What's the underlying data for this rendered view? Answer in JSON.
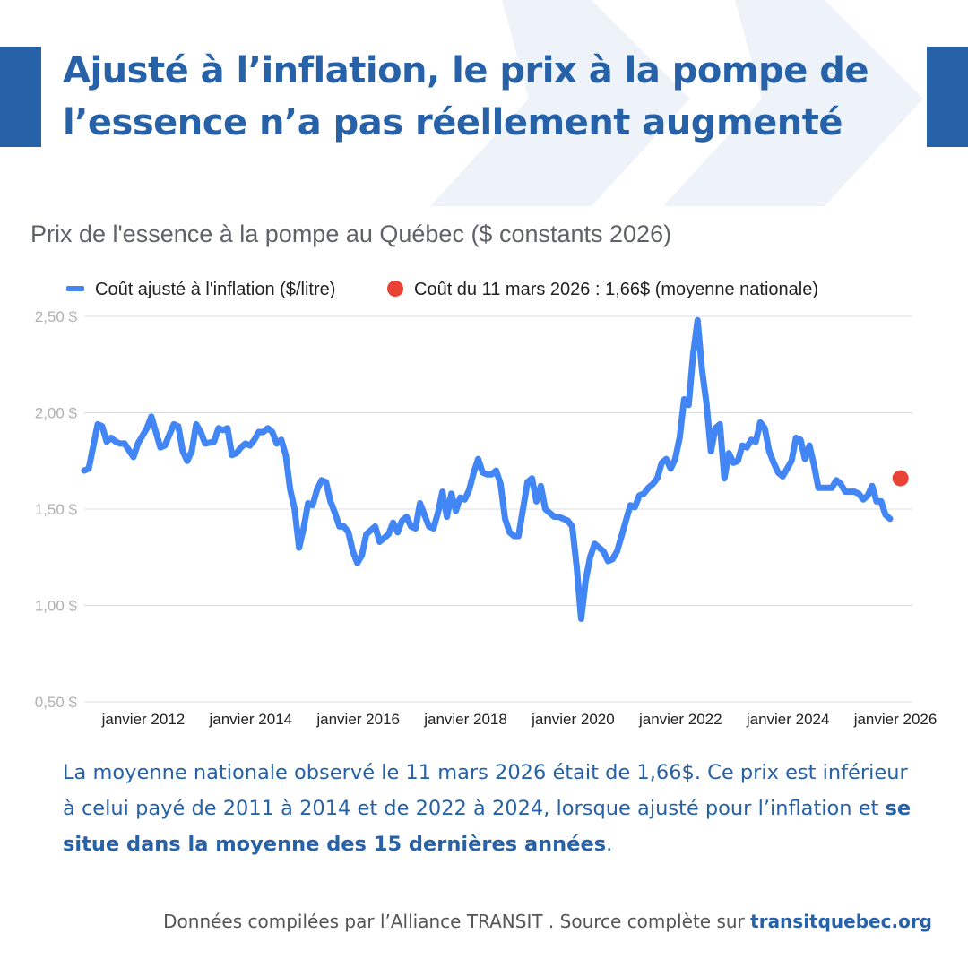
{
  "headline": {
    "line1": "Ajusté à l’inflation, le prix à la pompe de",
    "line2": "l’essence n’a pas réellement augmenté"
  },
  "body": {
    "part1": "La moyenne nationale observé le 11 mars 2026 était de 1,66$. Ce prix est inférieur à celui payé de 2011 à 2014 et de 2022 à 2024, lorsque ajusté pour l’inflation et ",
    "bold": "se situe dans la moyenne des 15 dernières années",
    "end": "."
  },
  "footer": {
    "text": "Données compilées par l’Alliance TRANSIT . Source complète sur ",
    "site": "transitquebec.org"
  },
  "colors": {
    "brand": "#2762a8",
    "series": "#4285f4",
    "point": "#ea4335",
    "chevron": "#eef3fa",
    "grid": "#dadce0"
  },
  "chart_data": {
    "type": "line",
    "title": "Prix de l'essence à la pompe au Québec ($ constants 2026)",
    "legend": [
      "Coût ajusté à l'inflation ($/litre)",
      "Coût du 11 mars 2026 : 1,66$ (moyenne nationale)"
    ],
    "legend_position": "top",
    "grid": true,
    "ylim": [
      0.5,
      2.5
    ],
    "y_ticks": [
      {
        "value": 0.5,
        "label": "0,50 $"
      },
      {
        "value": 1.0,
        "label": "1,00 $"
      },
      {
        "value": 1.5,
        "label": "1,50 $"
      },
      {
        "value": 2.0,
        "label": "2,00 $"
      },
      {
        "value": 2.5,
        "label": "2,50 $"
      }
    ],
    "xlim": [
      "2011-01",
      "2026-06"
    ],
    "x_ticks": [
      {
        "value": "2012-01",
        "label": "janvier 2012"
      },
      {
        "value": "2014-01",
        "label": "janvier 2014"
      },
      {
        "value": "2016-01",
        "label": "janvier 2016"
      },
      {
        "value": "2018-01",
        "label": "janvier 2018"
      },
      {
        "value": "2020-01",
        "label": "janvier 2020"
      },
      {
        "value": "2022-01",
        "label": "janvier 2022"
      },
      {
        "value": "2024-01",
        "label": "janvier 2024"
      },
      {
        "value": "2026-01",
        "label": "janvier 2026"
      }
    ],
    "series": [
      {
        "points": [
          [
            "2011-01",
            1.7
          ],
          [
            "2011-02",
            1.71
          ],
          [
            "2011-04",
            1.94
          ],
          [
            "2011-05",
            1.93
          ],
          [
            "2011-06",
            1.85
          ],
          [
            "2011-07",
            1.87
          ],
          [
            "2011-08",
            1.85
          ],
          [
            "2011-09",
            1.84
          ],
          [
            "2011-10",
            1.84
          ],
          [
            "2011-12",
            1.77
          ],
          [
            "2012-01",
            1.84
          ],
          [
            "2012-03",
            1.92
          ],
          [
            "2012-04",
            1.98
          ],
          [
            "2012-06",
            1.82
          ],
          [
            "2012-07",
            1.83
          ],
          [
            "2012-09",
            1.94
          ],
          [
            "2012-10",
            1.93
          ],
          [
            "2012-11",
            1.8
          ],
          [
            "2012-12",
            1.75
          ],
          [
            "2013-01",
            1.8
          ],
          [
            "2013-02",
            1.94
          ],
          [
            "2013-03",
            1.9
          ],
          [
            "2013-04",
            1.84
          ],
          [
            "2013-06",
            1.85
          ],
          [
            "2013-07",
            1.92
          ],
          [
            "2013-08",
            1.91
          ],
          [
            "2013-09",
            1.92
          ],
          [
            "2013-10",
            1.78
          ],
          [
            "2013-11",
            1.79
          ],
          [
            "2013-12",
            1.82
          ],
          [
            "2014-01",
            1.84
          ],
          [
            "2014-02",
            1.83
          ],
          [
            "2014-03",
            1.86
          ],
          [
            "2014-04",
            1.9
          ],
          [
            "2014-05",
            1.9
          ],
          [
            "2014-06",
            1.92
          ],
          [
            "2014-07",
            1.9
          ],
          [
            "2014-08",
            1.84
          ],
          [
            "2014-09",
            1.86
          ],
          [
            "2014-10",
            1.78
          ],
          [
            "2014-11",
            1.6
          ],
          [
            "2014-12",
            1.5
          ],
          [
            "2015-01",
            1.3
          ],
          [
            "2015-02",
            1.4
          ],
          [
            "2015-03",
            1.53
          ],
          [
            "2015-04",
            1.52
          ],
          [
            "2015-05",
            1.6
          ],
          [
            "2015-06",
            1.65
          ],
          [
            "2015-07",
            1.64
          ],
          [
            "2015-08",
            1.54
          ],
          [
            "2015-09",
            1.48
          ],
          [
            "2015-10",
            1.41
          ],
          [
            "2015-11",
            1.41
          ],
          [
            "2015-12",
            1.38
          ],
          [
            "2016-01",
            1.28
          ],
          [
            "2016-02",
            1.22
          ],
          [
            "2016-03",
            1.26
          ],
          [
            "2016-04",
            1.37
          ],
          [
            "2016-05",
            1.39
          ],
          [
            "2016-06",
            1.41
          ],
          [
            "2016-07",
            1.33
          ],
          [
            "2016-08",
            1.35
          ],
          [
            "2016-09",
            1.37
          ],
          [
            "2016-10",
            1.43
          ],
          [
            "2016-11",
            1.38
          ],
          [
            "2016-12",
            1.44
          ],
          [
            "2017-01",
            1.46
          ],
          [
            "2017-02",
            1.41
          ],
          [
            "2017-03",
            1.4
          ],
          [
            "2017-04",
            1.53
          ],
          [
            "2017-05",
            1.47
          ],
          [
            "2017-06",
            1.41
          ],
          [
            "2017-07",
            1.4
          ],
          [
            "2017-08",
            1.48
          ],
          [
            "2017-09",
            1.59
          ],
          [
            "2017-10",
            1.46
          ],
          [
            "2017-11",
            1.58
          ],
          [
            "2017-12",
            1.49
          ],
          [
            "2018-01",
            1.56
          ],
          [
            "2018-02",
            1.55
          ],
          [
            "2018-03",
            1.6
          ],
          [
            "2018-04",
            1.69
          ],
          [
            "2018-05",
            1.76
          ],
          [
            "2018-06",
            1.69
          ],
          [
            "2018-07",
            1.68
          ],
          [
            "2018-08",
            1.68
          ],
          [
            "2018-09",
            1.7
          ],
          [
            "2018-10",
            1.63
          ],
          [
            "2018-11",
            1.45
          ],
          [
            "2018-12",
            1.38
          ],
          [
            "2019-01",
            1.36
          ],
          [
            "2019-02",
            1.36
          ],
          [
            "2019-03",
            1.5
          ],
          [
            "2019-04",
            1.64
          ],
          [
            "2019-05",
            1.66
          ],
          [
            "2019-06",
            1.54
          ],
          [
            "2019-07",
            1.62
          ],
          [
            "2019-08",
            1.5
          ],
          [
            "2019-09",
            1.48
          ],
          [
            "2019-10",
            1.46
          ],
          [
            "2019-11",
            1.46
          ],
          [
            "2019-12",
            1.45
          ],
          [
            "2020-01",
            1.44
          ],
          [
            "2020-02",
            1.41
          ],
          [
            "2020-03",
            1.2
          ],
          [
            "2020-04",
            0.93
          ],
          [
            "2020-05",
            1.13
          ],
          [
            "2020-06",
            1.25
          ],
          [
            "2020-07",
            1.32
          ],
          [
            "2020-08",
            1.3
          ],
          [
            "2020-09",
            1.28
          ],
          [
            "2020-10",
            1.23
          ],
          [
            "2020-11",
            1.24
          ],
          [
            "2020-12",
            1.28
          ],
          [
            "2021-01",
            1.36
          ],
          [
            "2021-02",
            1.44
          ],
          [
            "2021-03",
            1.52
          ],
          [
            "2021-04",
            1.51
          ],
          [
            "2021-05",
            1.57
          ],
          [
            "2021-06",
            1.58
          ],
          [
            "2021-07",
            1.61
          ],
          [
            "2021-08",
            1.63
          ],
          [
            "2021-09",
            1.66
          ],
          [
            "2021-10",
            1.74
          ],
          [
            "2021-11",
            1.76
          ],
          [
            "2021-12",
            1.71
          ],
          [
            "2022-01",
            1.76
          ],
          [
            "2022-02",
            1.87
          ],
          [
            "2022-03",
            2.07
          ],
          [
            "2022-04",
            2.04
          ],
          [
            "2022-05",
            2.3
          ],
          [
            "2022-06",
            2.48
          ],
          [
            "2022-07",
            2.22
          ],
          [
            "2022-08",
            2.05
          ],
          [
            "2022-09",
            1.8
          ],
          [
            "2022-10",
            1.92
          ],
          [
            "2022-11",
            1.94
          ],
          [
            "2022-12",
            1.66
          ],
          [
            "2023-01",
            1.79
          ],
          [
            "2023-02",
            1.74
          ],
          [
            "2023-03",
            1.75
          ],
          [
            "2023-04",
            1.83
          ],
          [
            "2023-05",
            1.82
          ],
          [
            "2023-06",
            1.86
          ],
          [
            "2023-07",
            1.85
          ],
          [
            "2023-08",
            1.95
          ],
          [
            "2023-09",
            1.92
          ],
          [
            "2023-10",
            1.8
          ],
          [
            "2023-11",
            1.74
          ],
          [
            "2023-12",
            1.69
          ],
          [
            "2024-01",
            1.67
          ],
          [
            "2024-02",
            1.71
          ],
          [
            "2024-03",
            1.75
          ],
          [
            "2024-04",
            1.87
          ],
          [
            "2024-05",
            1.86
          ],
          [
            "2024-06",
            1.76
          ],
          [
            "2024-07",
            1.83
          ],
          [
            "2024-08",
            1.73
          ],
          [
            "2024-09",
            1.61
          ],
          [
            "2024-10",
            1.61
          ],
          [
            "2024-11",
            1.61
          ],
          [
            "2024-12",
            1.61
          ],
          [
            "2025-01",
            1.65
          ],
          [
            "2025-02",
            1.63
          ],
          [
            "2025-03",
            1.59
          ],
          [
            "2025-04",
            1.59
          ],
          [
            "2025-05",
            1.59
          ],
          [
            "2025-06",
            1.58
          ],
          [
            "2025-07",
            1.55
          ],
          [
            "2025-08",
            1.57
          ],
          [
            "2025-09",
            1.62
          ],
          [
            "2025-10",
            1.54
          ],
          [
            "2025-11",
            1.54
          ],
          [
            "2025-12",
            1.47
          ],
          [
            "2026-01",
            1.45
          ]
        ]
      }
    ],
    "highlight_point": {
      "x": "2026-03-11",
      "y": 1.66
    }
  }
}
